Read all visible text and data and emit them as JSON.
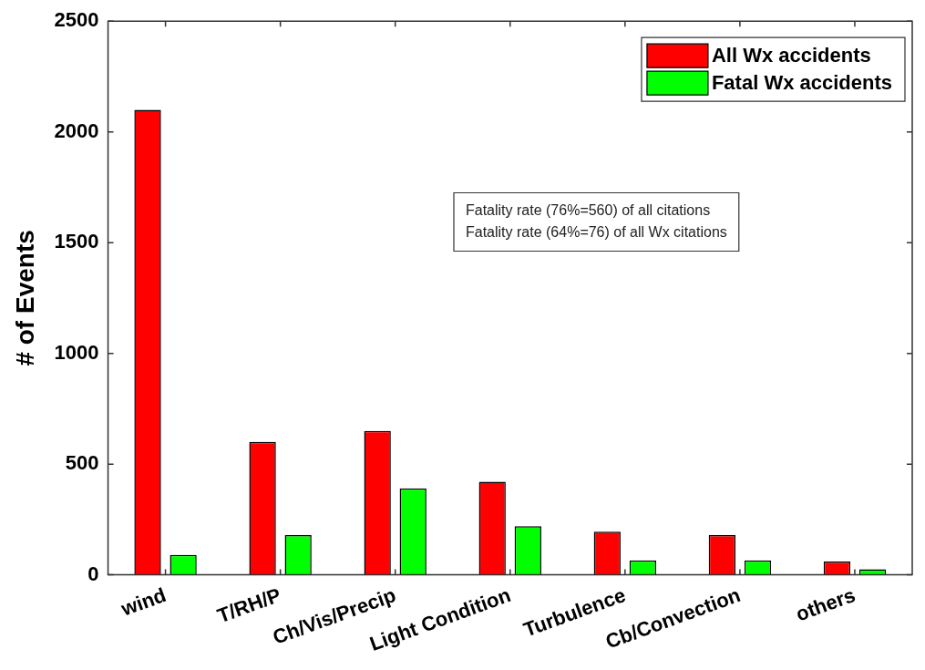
{
  "chart_data": {
    "type": "bar",
    "ylabel": "# of Events",
    "categories": [
      "wind",
      "T/RH/P",
      "Ch/Vis/Precip",
      "Light Condition",
      "Turbulence",
      "Cb/Convection",
      "others"
    ],
    "series": [
      {
        "name": "All Wx accidents",
        "color": "#ff0000",
        "values": [
          2100,
          600,
          650,
          420,
          195,
          180,
          60
        ]
      },
      {
        "name": "Fatal Wx accidents",
        "color": "#00ff00",
        "values": [
          90,
          180,
          390,
          220,
          65,
          65,
          25
        ]
      }
    ],
    "ylim": [
      0,
      2500
    ],
    "yticks": [
      0,
      500,
      1000,
      1500,
      2000,
      2500
    ],
    "annotations": [
      "Fatality rate (76%=560) of all citations",
      "Fatality rate (64%=76) of all Wx citations"
    ],
    "legend": "top right",
    "grid": false
  }
}
